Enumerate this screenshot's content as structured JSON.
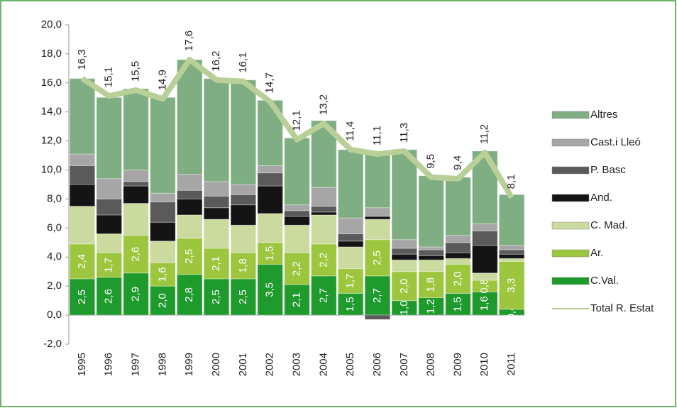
{
  "chart_data": {
    "type": "stacked_bar_line",
    "categories": [
      "1995",
      "1996",
      "1997",
      "1998",
      "1999",
      "2000",
      "2001",
      "2002",
      "2003",
      "2004",
      "2005",
      "2006",
      "2007",
      "2008",
      "2009",
      "2010",
      "2011"
    ],
    "ylim": [
      -2,
      20
    ],
    "yticks": [
      {
        "value": -2,
        "label": "-2,0"
      },
      {
        "value": 0,
        "label": "0,0"
      },
      {
        "value": 2,
        "label": "2,0"
      },
      {
        "value": 4,
        "label": "4,0"
      },
      {
        "value": 6,
        "label": "6,0"
      },
      {
        "value": 8,
        "label": "8,0"
      },
      {
        "value": 10,
        "label": "10,0"
      },
      {
        "value": 12,
        "label": "12,0"
      },
      {
        "value": 14,
        "label": "14,0"
      },
      {
        "value": 16,
        "label": "16,0"
      },
      {
        "value": 18,
        "label": "18,0"
      },
      {
        "value": 20,
        "label": "20,0"
      }
    ],
    "series": [
      {
        "name": "C.Val.",
        "color": "#1f9a2c",
        "values": [
          2.5,
          2.6,
          2.9,
          2.0,
          2.8,
          2.5,
          2.5,
          3.5,
          2.1,
          2.7,
          1.5,
          2.7,
          1.0,
          1.2,
          1.5,
          1.6,
          0.4
        ],
        "value_labels": [
          "2,5",
          "2,6",
          "2,9",
          "2,0",
          "2,8",
          "2,5",
          "2,5",
          "3,5",
          "2,1",
          "2,7",
          "1,5",
          "2,7",
          "1,0",
          "1,2",
          "1,5",
          "1,6",
          "0,4"
        ]
      },
      {
        "name": "Ar.",
        "color": "#9cc63e",
        "values": [
          2.4,
          1.7,
          2.6,
          1.6,
          2.5,
          2.1,
          1.8,
          1.5,
          2.2,
          2.2,
          1.7,
          2.5,
          2.0,
          1.8,
          2.0,
          0.8,
          3.3
        ],
        "value_labels": [
          "2,4",
          "1,7",
          "2,6",
          "1,6",
          "2,5",
          "2,1",
          "1,8",
          "1,5",
          "2,2",
          "2,2",
          "1,7",
          "2,5",
          "2,0",
          "1,8",
          "2,0",
          "0,8",
          "3,3"
        ]
      },
      {
        "name": "C. Mad.",
        "color": "#cbdb9f",
        "values": [
          2.6,
          1.3,
          2.2,
          1.5,
          1.6,
          2.0,
          1.9,
          2.0,
          1.9,
          2.0,
          1.5,
          1.4,
          0.8,
          0.8,
          0.4,
          0.5,
          0.2
        ]
      },
      {
        "name": "And.",
        "color": "#141414",
        "values": [
          1.5,
          1.3,
          1.2,
          1.3,
          1.1,
          0.8,
          1.4,
          1.9,
          0.6,
          0.2,
          0.4,
          0.2,
          0.4,
          0.3,
          0.4,
          1.9,
          0.3
        ]
      },
      {
        "name": "P. Basc",
        "color": "#5a5a5a",
        "values": [
          1.3,
          1.1,
          0.3,
          1.4,
          0.6,
          0.8,
          0.7,
          0.9,
          0.4,
          0.4,
          0.5,
          -0.3,
          0.4,
          0.4,
          0.7,
          1.0,
          0.3
        ]
      },
      {
        "name": "Cast.i Lleó",
        "color": "#a6a6a6",
        "values": [
          0.8,
          1.4,
          0.8,
          0.6,
          1.1,
          1.0,
          0.7,
          0.5,
          0.4,
          1.3,
          1.1,
          0.6,
          0.6,
          0.2,
          0.5,
          0.5,
          0.3
        ]
      },
      {
        "name": "Altres",
        "color": "#7fae82",
        "values": [
          5.2,
          5.6,
          5.6,
          6.6,
          7.9,
          7.1,
          7.2,
          4.5,
          4.6,
          4.6,
          4.7,
          3.8,
          6.2,
          4.9,
          4.0,
          5.0,
          3.5
        ]
      },
      {
        "name": "Total R. Estat",
        "color": "#b8cf98",
        "type": "line",
        "values": [
          16.3,
          15.1,
          15.5,
          14.9,
          17.6,
          16.2,
          16.1,
          14.7,
          12.1,
          13.2,
          11.4,
          11.1,
          11.3,
          9.5,
          9.4,
          11.2,
          8.1
        ],
        "value_labels": [
          "16,3",
          "15,1",
          "15,5",
          "14,9",
          "17,6",
          "16,2",
          "16,1",
          "14,7",
          "12,1",
          "13,2",
          "11,4",
          "11,1",
          "11,3",
          "9,5",
          "9,4",
          "11,2",
          "8,1"
        ]
      }
    ]
  }
}
